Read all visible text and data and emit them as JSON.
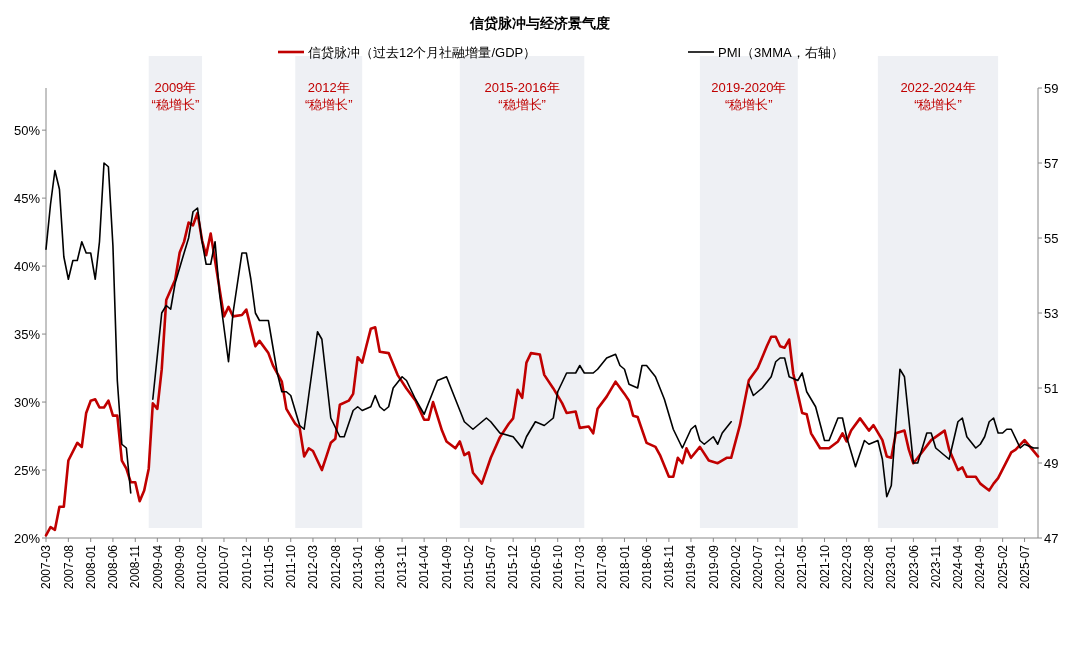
{
  "chart_data": {
    "type": "line",
    "title": "信贷脉冲与经济景气度",
    "legend": "top",
    "line_style": "solid",
    "xlim": [
      "2007-03",
      "2025-10"
    ],
    "xticks": [
      "2007-03",
      "2007-08",
      "2008-01",
      "2008-06",
      "2008-11",
      "2009-04",
      "2009-09",
      "2010-02",
      "2010-07",
      "2010-12",
      "2011-05",
      "2011-10",
      "2012-03",
      "2012-08",
      "2013-01",
      "2013-06",
      "2013-11",
      "2014-04",
      "2014-09",
      "2015-02",
      "2015-07",
      "2015-12",
      "2016-05",
      "2016-10",
      "2017-03",
      "2017-08",
      "2018-01",
      "2018-06",
      "2018-11",
      "2019-04",
      "2019-09",
      "2020-02",
      "2020-07",
      "2020-12",
      "2021-05",
      "2021-10",
      "2022-03",
      "2022-08",
      "2023-01",
      "2023-06",
      "2023-11",
      "2024-04",
      "2024-09",
      "2025-02",
      "2025-07"
    ],
    "ylim": [
      20,
      53.1
    ],
    "yticks": [
      {
        "value": 20,
        "label": "20%"
      },
      {
        "value": 25,
        "label": "25%"
      },
      {
        "value": 30,
        "label": "30%"
      },
      {
        "value": 35,
        "label": "35%"
      },
      {
        "value": 40,
        "label": "40%"
      },
      {
        "value": 45,
        "label": "45%"
      },
      {
        "value": 50,
        "label": "50%"
      }
    ],
    "y2lim": [
      47,
      59
    ],
    "y2ticks": [
      47,
      49,
      51,
      53,
      55,
      57,
      59
    ],
    "bands": [
      {
        "axis": "x",
        "from": "2009-02",
        "to": "2010-02",
        "label": "2009年\n“稳增长”",
        "color": "#eef0f4"
      },
      {
        "axis": "x",
        "from": "2011-11",
        "to": "2013-02",
        "label": "2012年\n“稳增长”",
        "color": "#eef0f4"
      },
      {
        "axis": "x",
        "from": "2014-12",
        "to": "2017-04",
        "label": "2015-2016年\n“稳增长”",
        "color": "#eef0f4"
      },
      {
        "axis": "x",
        "from": "2019-06",
        "to": "2021-04",
        "label": "2019-2020年\n“稳增长”",
        "color": "#eef0f4"
      },
      {
        "axis": "x",
        "from": "2022-10",
        "to": "2025-01",
        "label": "2022-2024年\n“稳增长”",
        "color": "#eef0f4"
      }
    ],
    "series": [
      {
        "name": "信贷脉冲（过去12个月社融增量/GDP）",
        "color": "#c00000",
        "x": [
          "2007-03",
          "2007-04",
          "2007-05",
          "2007-06",
          "2007-07",
          "2007-08",
          "2007-10",
          "2007-11",
          "2007-12",
          "2008-01",
          "2008-02",
          "2008-03",
          "2008-04",
          "2008-05",
          "2008-06",
          "2008-07",
          "2008-08",
          "2008-09",
          "2008-10",
          "2008-11",
          "2008-12",
          "2009-01",
          "2009-02",
          "2009-03",
          "2009-04",
          "2009-05",
          "2009-06",
          "2009-08",
          "2009-09",
          "2009-10",
          "2009-11",
          "2009-12",
          "2010-01",
          "2010-02",
          "2010-03",
          "2010-04",
          "2010-05",
          "2010-06",
          "2010-07",
          "2010-08",
          "2010-09",
          "2010-11",
          "2010-12",
          "2011-02",
          "2011-03",
          "2011-05",
          "2011-06",
          "2011-08",
          "2011-09",
          "2011-11",
          "2011-12",
          "2012-01",
          "2012-02",
          "2012-03",
          "2012-05",
          "2012-06",
          "2012-07",
          "2012-08",
          "2012-09",
          "2012-11",
          "2012-12",
          "2013-01",
          "2013-02",
          "2013-03",
          "2013-04",
          "2013-05",
          "2013-06",
          "2013-08",
          "2013-10",
          "2013-12",
          "2014-02",
          "2014-04",
          "2014-05",
          "2014-06",
          "2014-08",
          "2014-09",
          "2014-11",
          "2014-12",
          "2015-01",
          "2015-02",
          "2015-03",
          "2015-05",
          "2015-07",
          "2015-09",
          "2015-11",
          "2015-12",
          "2016-01",
          "2016-02",
          "2016-03",
          "2016-04",
          "2016-06",
          "2016-07",
          "2016-09",
          "2016-11",
          "2016-12",
          "2017-02",
          "2017-03",
          "2017-05",
          "2017-06",
          "2017-07",
          "2017-09",
          "2017-11",
          "2018-01",
          "2018-02",
          "2018-03",
          "2018-04",
          "2018-06",
          "2018-08",
          "2018-09",
          "2018-11",
          "2018-12",
          "2019-01",
          "2019-02",
          "2019-03",
          "2019-04",
          "2019-06",
          "2019-08",
          "2019-10",
          "2019-12",
          "2020-01",
          "2020-03",
          "2020-05",
          "2020-07",
          "2020-09",
          "2020-10",
          "2020-11",
          "2020-12",
          "2021-01",
          "2021-02",
          "2021-03",
          "2021-05",
          "2021-06",
          "2021-07",
          "2021-09",
          "2021-11",
          "2022-01",
          "2022-02",
          "2022-03",
          "2022-04",
          "2022-06",
          "2022-08",
          "2022-09",
          "2022-11",
          "2022-12",
          "2023-01",
          "2023-02",
          "2023-04",
          "2023-05",
          "2023-06",
          "2023-07",
          "2023-10",
          "2024-01",
          "2024-02",
          "2024-04",
          "2024-05",
          "2024-06",
          "2024-08",
          "2024-09",
          "2024-11",
          "2024-12",
          "2025-01",
          "2025-04",
          "2025-05",
          "2025-07",
          "2025-08",
          "2025-10"
        ],
        "values": [
          20.2,
          20.8,
          20.6,
          22.3,
          22.3,
          25.7,
          27.0,
          26.7,
          29.2,
          30.1,
          30.2,
          29.6,
          29.6,
          30.1,
          29.0,
          29.0,
          25.7,
          25.1,
          24.1,
          24.1,
          22.7,
          23.5,
          25.1,
          29.9,
          29.5,
          32.4,
          37.5,
          39.0,
          41.0,
          41.8,
          43.2,
          43.0,
          43.9,
          41.9,
          40.8,
          42.4,
          40.4,
          38.3,
          36.3,
          37.0,
          36.3,
          36.4,
          36.8,
          34.1,
          34.5,
          33.6,
          32.7,
          31.5,
          29.5,
          28.4,
          28.1,
          26.0,
          26.6,
          26.4,
          25.0,
          26.0,
          27.0,
          27.3,
          29.8,
          30.1,
          30.6,
          33.3,
          32.9,
          34.1,
          35.4,
          35.5,
          33.7,
          33.6,
          32.0,
          31.0,
          30.1,
          28.7,
          28.7,
          30.0,
          27.9,
          27.1,
          26.6,
          27.1,
          26.1,
          26.3,
          24.8,
          24.0,
          25.9,
          27.4,
          28.4,
          28.8,
          30.9,
          30.3,
          32.9,
          33.6,
          33.5,
          32.0,
          31.0,
          29.9,
          29.2,
          29.3,
          28.1,
          28.2,
          27.7,
          29.5,
          30.4,
          31.5,
          30.6,
          30.1,
          29.0,
          28.9,
          27.0,
          26.7,
          26.1,
          24.5,
          24.5,
          25.9,
          25.5,
          26.6,
          25.9,
          26.7,
          25.7,
          25.5,
          25.9,
          25.9,
          28.3,
          31.6,
          32.5,
          34.1,
          34.8,
          34.8,
          34.1,
          34.0,
          34.6,
          32.1,
          29.2,
          29.1,
          27.7,
          26.6,
          26.6,
          27.1,
          27.7,
          27.1,
          27.9,
          28.8,
          27.9,
          28.3,
          27.2,
          26.0,
          25.9,
          27.7,
          27.9,
          26.5,
          25.5,
          25.9,
          27.2,
          27.9,
          26.5,
          25.0,
          25.2,
          24.5,
          24.5,
          24.0,
          23.5,
          24.0,
          24.4,
          26.3,
          26.5,
          27.2,
          26.8,
          26.0
        ]
      },
      {
        "name": "PMI（3MMA，右轴）",
        "color": "#000000",
        "axis": "y2",
        "x": [
          "2007-03",
          "2007-04",
          "2007-05",
          "2007-06",
          "2007-07",
          "2007-08",
          "2007-09",
          "2007-10",
          "2007-11",
          "2007-12",
          "2008-01",
          "2008-02",
          "2008-03",
          "2008-04",
          "2008-05",
          "2008-06",
          "2008-07",
          "2008-08",
          "2008-09",
          "2008-10",
          "2008-11",
          "2008-12",
          "2009-01",
          "2009-02",
          "2009-03",
          "2009-05",
          "2009-06",
          "2009-07",
          "2009-08",
          "2009-10",
          "2009-11",
          "2009-12",
          "2010-01",
          "2010-02",
          "2010-03",
          "2010-04",
          "2010-05",
          "2010-06",
          "2010-08",
          "2010-09",
          "2010-11",
          "2010-12",
          "2011-01",
          "2011-02",
          "2011-03",
          "2011-05",
          "2011-07",
          "2011-08",
          "2011-09",
          "2011-10",
          "2011-12",
          "2012-01",
          "2012-02",
          "2012-04",
          "2012-05",
          "2012-07",
          "2012-09",
          "2012-10",
          "2012-12",
          "2013-01",
          "2013-02",
          "2013-04",
          "2013-05",
          "2013-06",
          "2013-07",
          "2013-08",
          "2013-09",
          "2013-11",
          "2013-12",
          "2014-02",
          "2014-04",
          "2014-05",
          "2014-07",
          "2014-09",
          "2014-11",
          "2015-01",
          "2015-03",
          "2015-06",
          "2015-07",
          "2015-09",
          "2015-12",
          "2016-02",
          "2016-03",
          "2016-05",
          "2016-07",
          "2016-09",
          "2016-10",
          "2016-12",
          "2017-02",
          "2017-03",
          "2017-04",
          "2017-06",
          "2017-07",
          "2017-09",
          "2017-11",
          "2017-12",
          "2018-01",
          "2018-02",
          "2018-04",
          "2018-05",
          "2018-06",
          "2018-08",
          "2018-10",
          "2018-12",
          "2019-02",
          "2019-04",
          "2019-05",
          "2019-06",
          "2019-07",
          "2019-09",
          "2019-10",
          "2019-11",
          "2020-01",
          "2020-02",
          "2020-03",
          "2020-04",
          "2020-05",
          "2020-06",
          "2020-08",
          "2020-10",
          "2020-11",
          "2020-12",
          "2021-01",
          "2021-02",
          "2021-04",
          "2021-05",
          "2021-06",
          "2021-08",
          "2021-10",
          "2021-11",
          "2022-01",
          "2022-02",
          "2022-03",
          "2022-05",
          "2022-07",
          "2022-08",
          "2022-10",
          "2022-11",
          "2022-12",
          "2023-01",
          "2023-03",
          "2023-04",
          "2023-06",
          "2023-07",
          "2023-09",
          "2023-10",
          "2023-11",
          "2024-02",
          "2024-04",
          "2024-05",
          "2024-06",
          "2024-08",
          "2024-09",
          "2024-10",
          "2024-11",
          "2024-12",
          "2025-01",
          "2025-02",
          "2025-03",
          "2025-04",
          "2025-06",
          "2025-07",
          "2025-09",
          "2025-10"
        ],
        "values": [
          54.7,
          55.9,
          56.8,
          56.3,
          54.5,
          53.9,
          54.4,
          54.4,
          54.9,
          54.6,
          54.6,
          53.9,
          54.9,
          57.0,
          56.9,
          54.8,
          51.2,
          49.5,
          49.4,
          48.2,
          null,
          null,
          null,
          null,
          50.7,
          53.0,
          53.2,
          53.1,
          53.8,
          54.6,
          55.0,
          55.7,
          55.8,
          54.9,
          54.3,
          54.3,
          54.9,
          53.5,
          51.7,
          53.0,
          54.6,
          54.6,
          53.9,
          53.0,
          52.8,
          52.8,
          51.4,
          50.9,
          50.9,
          50.8,
          50.0,
          49.9,
          50.8,
          52.5,
          52.3,
          50.2,
          49.7,
          49.7,
          50.4,
          50.5,
          50.4,
          50.5,
          50.8,
          50.5,
          50.4,
          50.5,
          51.0,
          51.3,
          51.2,
          50.7,
          50.3,
          50.6,
          51.2,
          51.3,
          50.7,
          50.1,
          49.9,
          50.2,
          50.1,
          49.8,
          49.7,
          49.4,
          49.7,
          50.1,
          50.0,
          50.2,
          50.9,
          51.4,
          51.4,
          51.6,
          51.4,
          51.4,
          51.5,
          51.8,
          51.9,
          51.6,
          51.5,
          51.1,
          51.0,
          51.6,
          51.6,
          51.3,
          50.7,
          49.9,
          49.4,
          49.9,
          50.0,
          49.6,
          49.5,
          49.7,
          49.5,
          49.8,
          50.1,
          null,
          null,
          null,
          51.1,
          50.8,
          51.0,
          51.3,
          51.7,
          51.8,
          51.8,
          51.3,
          51.2,
          51.4,
          50.9,
          50.5,
          49.6,
          49.6,
          50.2,
          50.2,
          49.7,
          48.9,
          49.6,
          49.5,
          49.6,
          49.1,
          48.1,
          48.4,
          51.5,
          51.3,
          49.0,
          49.0,
          49.8,
          49.8,
          49.4,
          49.1,
          50.1,
          50.2,
          49.7,
          49.4,
          49.5,
          49.7,
          50.1,
          50.2,
          49.8,
          49.8,
          49.9,
          49.9,
          49.4,
          49.5,
          49.4,
          49.4
        ]
      }
    ]
  }
}
